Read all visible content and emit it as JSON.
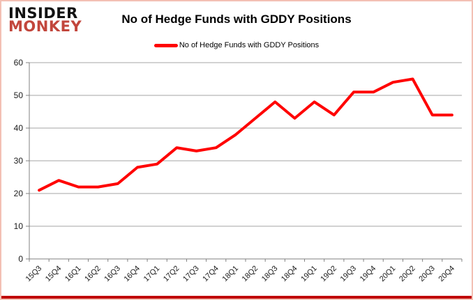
{
  "frame": {
    "border_color": "#f3c0b4",
    "bottom_bar_color": "#c00000"
  },
  "header": {
    "logo": {
      "line1": "INSIDER",
      "line2": "MONKEY",
      "line1_color": "#121212",
      "line2_color": "#c2463c"
    },
    "title": "No of Hedge Funds with GDDY Positions"
  },
  "legend": {
    "label": "No of Hedge Funds with GDDY Positions",
    "swatch_color": "#ff0000",
    "position": "top"
  },
  "chart_data": {
    "type": "line",
    "title": "No of Hedge Funds with GDDY Positions",
    "categories": [
      "15Q3",
      "15Q4",
      "16Q1",
      "16Q2",
      "16Q3",
      "16Q4",
      "17Q1",
      "17Q2",
      "17Q3",
      "17Q4",
      "18Q1",
      "18Q2",
      "18Q3",
      "18Q4",
      "19Q1",
      "19Q2",
      "19Q3",
      "19Q4",
      "20Q1",
      "20Q2",
      "20Q3",
      "20Q4"
    ],
    "series": [
      {
        "name": "No of Hedge Funds with GDDY Positions",
        "values": [
          21,
          24,
          22,
          22,
          23,
          28,
          29,
          34,
          33,
          34,
          38,
          43,
          48,
          43,
          48,
          44,
          51,
          51,
          54,
          55,
          44,
          44
        ]
      }
    ],
    "xlabel": "",
    "ylabel": "",
    "ylim": [
      0,
      60
    ],
    "yticks": [
      0,
      10,
      20,
      30,
      40,
      50,
      60
    ],
    "grid": "horizontal",
    "legend_position": "top",
    "line_color": "#ff0000",
    "grid_color": "#a6a6a6",
    "axis_color": "#808080",
    "label_color": "#1a1a1a"
  }
}
